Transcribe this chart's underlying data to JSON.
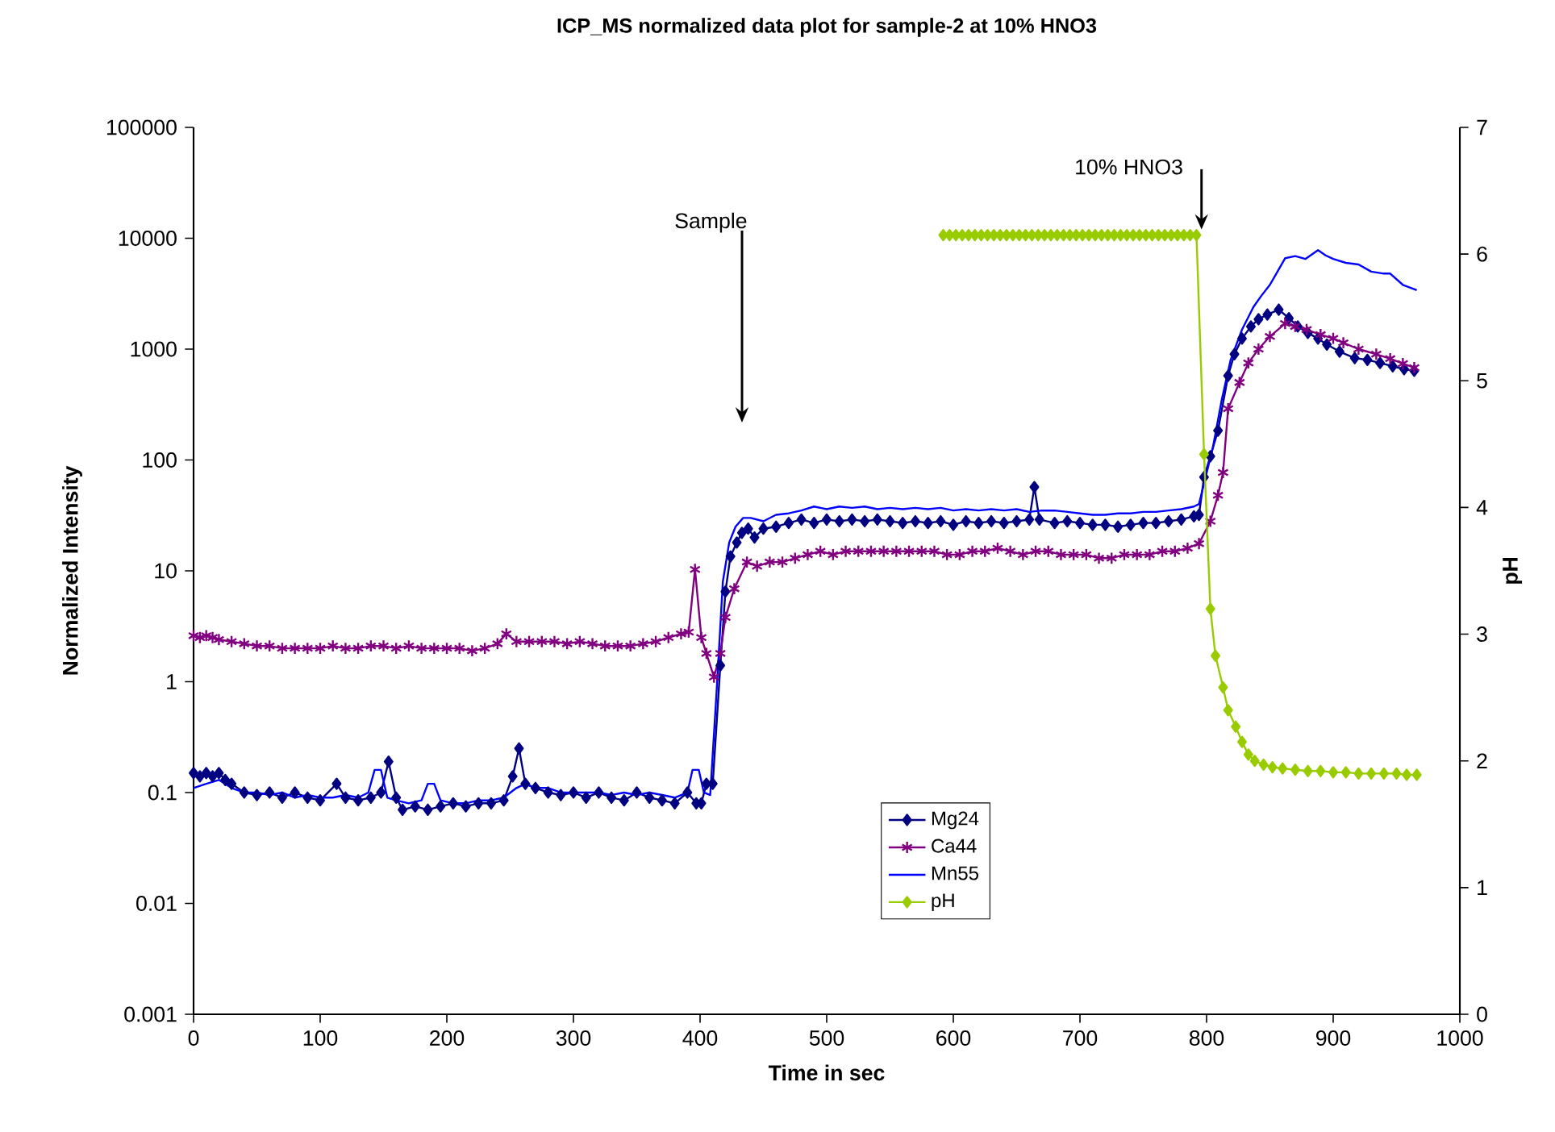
{
  "chart_data": {
    "type": "line",
    "title": "ICP_MS normalized data plot for sample-2 at 10% HNO3",
    "xlabel": "Time in sec",
    "ylabel": "Normalized Intensity",
    "y2label": "pH",
    "xlim": [
      0,
      1000
    ],
    "xticks": [
      0,
      100,
      200,
      300,
      400,
      500,
      600,
      700,
      800,
      900,
      1000
    ],
    "ylim": [
      0.001,
      100000
    ],
    "yticks": [
      0.001,
      0.01,
      0.1,
      1,
      10,
      100,
      1000,
      10000,
      100000
    ],
    "log": "y",
    "y2lim": [
      0,
      7
    ],
    "y2ticks": [
      0,
      1,
      2,
      3,
      4,
      5,
      6,
      7
    ],
    "legend": "bottom",
    "annotations": [
      "Sample",
      {
        "text": "10% HNO3",
        "x": 796,
        "y": 12000
      }
    ],
    "series": [
      {
        "name": "Mg24",
        "color": "#000080",
        "marker": "diamond",
        "x": [
          0,
          5,
          10,
          15,
          20,
          25,
          30,
          40,
          50,
          60,
          70,
          80,
          90,
          100,
          113,
          120,
          130,
          140,
          148,
          154,
          160,
          165,
          175,
          185,
          195,
          205,
          215,
          225,
          235,
          245,
          252,
          257,
          262,
          270,
          280,
          290,
          300,
          310,
          320,
          330,
          340,
          350,
          360,
          370,
          380,
          390,
          397,
          401,
          405,
          410,
          416,
          420,
          424,
          429,
          433,
          438,
          443,
          450,
          460,
          470,
          480,
          490,
          500,
          510,
          520,
          530,
          540,
          550,
          560,
          570,
          580,
          590,
          600,
          610,
          620,
          630,
          640,
          650,
          660,
          664,
          668,
          680,
          690,
          700,
          710,
          720,
          730,
          740,
          750,
          760,
          770,
          780,
          790,
          794,
          798,
          803,
          809,
          817,
          822,
          828,
          835,
          841,
          848,
          857,
          865,
          872,
          880,
          888,
          895,
          905,
          917,
          927,
          937,
          947,
          956,
          964
        ],
        "values": [
          0.15,
          0.14,
          0.15,
          0.14,
          0.15,
          0.13,
          0.12,
          0.1,
          0.095,
          0.1,
          0.09,
          0.1,
          0.09,
          0.085,
          0.12,
          0.09,
          0.085,
          0.09,
          0.1,
          0.19,
          0.09,
          0.07,
          0.075,
          0.07,
          0.075,
          0.08,
          0.075,
          0.08,
          0.08,
          0.085,
          0.14,
          0.25,
          0.12,
          0.11,
          0.1,
          0.095,
          0.1,
          0.09,
          0.1,
          0.09,
          0.085,
          0.1,
          0.09,
          0.085,
          0.08,
          0.1,
          0.08,
          0.08,
          0.12,
          0.12,
          1.4,
          6.5,
          13.5,
          18,
          22,
          24,
          20,
          24,
          25,
          27,
          29,
          27,
          29,
          28,
          29,
          28,
          29,
          28,
          27,
          28,
          27,
          28,
          26,
          28,
          27,
          28,
          27,
          28,
          29,
          57,
          29,
          27,
          28,
          27,
          26,
          26,
          25,
          26,
          27,
          27,
          28,
          29,
          31,
          32,
          70,
          108,
          184,
          575,
          900,
          1245,
          1600,
          1860,
          2050,
          2270,
          1900,
          1600,
          1400,
          1245,
          1100,
          950,
          830,
          800,
          750,
          700,
          660,
          637
        ]
      },
      {
        "name": "Ca44",
        "color": "#800080",
        "marker": "cross",
        "x": [
          0,
          5,
          10,
          15,
          20,
          30,
          40,
          50,
          60,
          70,
          80,
          90,
          100,
          110,
          120,
          130,
          140,
          150,
          160,
          170,
          180,
          190,
          200,
          210,
          220,
          230,
          240,
          247,
          255,
          265,
          275,
          285,
          295,
          305,
          315,
          325,
          335,
          345,
          355,
          365,
          375,
          385,
          391,
          396,
          401,
          405,
          411,
          416,
          420,
          427,
          437,
          445,
          455,
          465,
          475,
          485,
          495,
          505,
          515,
          525,
          535,
          545,
          555,
          565,
          575,
          585,
          595,
          605,
          615,
          625,
          635,
          645,
          655,
          665,
          675,
          685,
          695,
          705,
          715,
          725,
          735,
          745,
          755,
          765,
          775,
          785,
          794,
          803,
          809,
          813,
          817,
          826,
          833,
          841,
          850,
          862,
          870,
          879,
          890,
          900,
          908,
          920,
          934,
          945,
          955,
          964
        ],
        "values": [
          2.6,
          2.5,
          2.6,
          2.5,
          2.4,
          2.3,
          2.2,
          2.1,
          2.1,
          2.0,
          2.0,
          2.0,
          2.0,
          2.1,
          2.0,
          2.0,
          2.1,
          2.1,
          2.0,
          2.1,
          2.0,
          2.0,
          2.0,
          2.0,
          1.9,
          2.0,
          2.2,
          2.7,
          2.3,
          2.3,
          2.3,
          2.3,
          2.2,
          2.3,
          2.2,
          2.1,
          2.1,
          2.1,
          2.2,
          2.3,
          2.5,
          2.7,
          2.8,
          10.3,
          2.5,
          1.8,
          1.1,
          1.8,
          3.8,
          6.9,
          12,
          11,
          12,
          12,
          13,
          14,
          15,
          14,
          15,
          15,
          15,
          15,
          15,
          15,
          15,
          15,
          14,
          14,
          15,
          15,
          16,
          15,
          14,
          15,
          15,
          14,
          14,
          14,
          13,
          13,
          14,
          14,
          14,
          15,
          15,
          16,
          17.6,
          28,
          48,
          77,
          290,
          500,
          750,
          1000,
          1300,
          1700,
          1600,
          1500,
          1350,
          1250,
          1140,
          1000,
          900,
          820,
          740,
          680
        ]
      },
      {
        "name": "Mn55",
        "color": "#0000ff",
        "marker": "none",
        "x": [
          0,
          10,
          20,
          30,
          40,
          50,
          60,
          70,
          80,
          90,
          100,
          110,
          120,
          130,
          138,
          143,
          148,
          153,
          160,
          170,
          180,
          185,
          190,
          195,
          205,
          215,
          225,
          235,
          245,
          255,
          262,
          270,
          280,
          290,
          300,
          310,
          320,
          330,
          340,
          350,
          360,
          370,
          380,
          390,
          394,
          399,
          403,
          408,
          413,
          418,
          423,
          428,
          434,
          440,
          450,
          460,
          470,
          480,
          490,
          500,
          510,
          520,
          530,
          540,
          550,
          560,
          570,
          580,
          590,
          600,
          610,
          620,
          630,
          640,
          650,
          660,
          670,
          680,
          690,
          700,
          710,
          720,
          730,
          740,
          750,
          760,
          770,
          780,
          790,
          794,
          805,
          812,
          819,
          828,
          837,
          843,
          850,
          856,
          862,
          870,
          878,
          888,
          894,
          900,
          910,
          920,
          930,
          940,
          945,
          955,
          966
        ],
        "values": [
          0.11,
          0.12,
          0.13,
          0.11,
          0.1,
          0.1,
          0.095,
          0.1,
          0.09,
          0.095,
          0.09,
          0.09,
          0.095,
          0.09,
          0.1,
          0.16,
          0.16,
          0.09,
          0.085,
          0.08,
          0.085,
          0.12,
          0.12,
          0.085,
          0.08,
          0.08,
          0.085,
          0.085,
          0.09,
          0.11,
          0.12,
          0.11,
          0.11,
          0.1,
          0.1,
          0.1,
          0.1,
          0.095,
          0.1,
          0.095,
          0.1,
          0.095,
          0.09,
          0.1,
          0.16,
          0.16,
          0.1,
          0.095,
          0.8,
          8,
          18,
          25,
          30,
          30,
          28,
          32,
          33,
          35,
          38,
          36,
          38,
          37,
          38,
          36,
          37,
          36,
          37,
          36,
          37,
          35,
          36,
          35,
          36,
          35,
          36,
          34,
          35,
          35,
          34,
          33,
          32,
          32,
          33,
          33,
          34,
          34,
          35,
          36,
          38,
          40,
          130,
          350,
          800,
          1500,
          2400,
          3000,
          3800,
          5000,
          6600,
          6900,
          6500,
          7800,
          7000,
          6500,
          6000,
          5800,
          5000,
          4800,
          4800,
          3800,
          3400
        ]
      },
      {
        "name": "pH",
        "color": "#99cc00",
        "marker": "diamond",
        "axis": "y2",
        "x": [
          592,
          597,
          602,
          607,
          612,
          617,
          622,
          627,
          632,
          637,
          642,
          647,
          652,
          657,
          662,
          667,
          672,
          677,
          682,
          687,
          692,
          697,
          702,
          707,
          712,
          717,
          722,
          727,
          732,
          737,
          742,
          747,
          752,
          757,
          762,
          767,
          772,
          777,
          782,
          787,
          792,
          798,
          803,
          807,
          813,
          817,
          823,
          828,
          833,
          838,
          845,
          852,
          860,
          870,
          880,
          890,
          900,
          910,
          920,
          930,
          940,
          950,
          958,
          966
        ],
        "values": [
          6.15,
          6.15,
          6.15,
          6.15,
          6.15,
          6.15,
          6.15,
          6.15,
          6.15,
          6.15,
          6.15,
          6.15,
          6.15,
          6.15,
          6.15,
          6.15,
          6.15,
          6.15,
          6.15,
          6.15,
          6.15,
          6.15,
          6.15,
          6.15,
          6.15,
          6.15,
          6.15,
          6.15,
          6.15,
          6.15,
          6.15,
          6.15,
          6.15,
          6.15,
          6.15,
          6.15,
          6.15,
          6.15,
          6.15,
          6.15,
          6.15,
          4.42,
          3.2,
          2.83,
          2.58,
          2.4,
          2.27,
          2.15,
          2.05,
          2.0,
          1.97,
          1.95,
          1.94,
          1.93,
          1.92,
          1.92,
          1.91,
          1.91,
          1.9,
          1.9,
          1.9,
          1.9,
          1.89,
          1.89
        ]
      }
    ]
  }
}
